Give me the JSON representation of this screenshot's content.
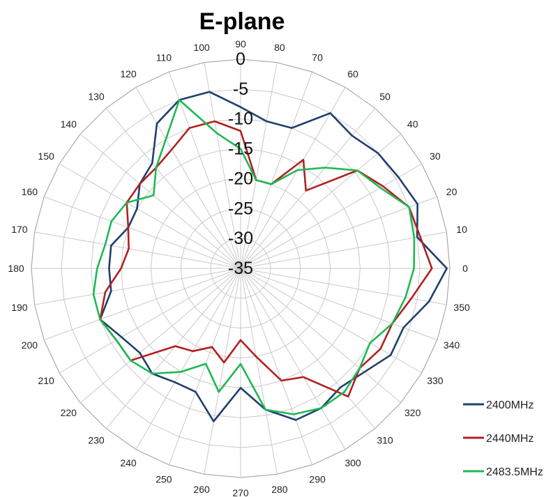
{
  "chart_data": {
    "type": "line",
    "subtype": "polar-radar",
    "title": "E-plane",
    "angle_labels": [
      "0",
      "10",
      "20",
      "30",
      "40",
      "50",
      "60",
      "70",
      "80",
      "90",
      "100",
      "110",
      "120",
      "130",
      "140",
      "150",
      "160",
      "170",
      "180",
      "190",
      "200",
      "210",
      "220",
      "230",
      "240",
      "250",
      "260",
      "270",
      "280",
      "290",
      "300",
      "310",
      "320",
      "330",
      "340",
      "350"
    ],
    "radial_labels": [
      "0",
      "-5",
      "-10",
      "-15",
      "-20",
      "-25",
      "-30",
      "-35"
    ],
    "rlim": [
      -35,
      0
    ],
    "grid": true,
    "legend_position": "bottom-right",
    "angles": [
      0,
      10,
      20,
      30,
      40,
      50,
      60,
      70,
      80,
      90,
      100,
      110,
      120,
      130,
      140,
      150,
      160,
      170,
      180,
      190,
      200,
      210,
      220,
      230,
      240,
      250,
      260,
      270,
      280,
      290,
      300,
      310,
      320,
      330,
      340,
      350
    ],
    "series": [
      {
        "name": "2400MHz",
        "color": "#1f3f6e",
        "values": [
          -0.5,
          -5,
          -3.5,
          -4.5,
          -5,
          -6,
          -5,
          -10,
          -10,
          -8,
          -5,
          -5,
          -7,
          -12,
          -13,
          -15,
          -15,
          -13,
          -13,
          -13,
          -10,
          -12,
          -13,
          -12,
          -13,
          -13,
          -9,
          -15,
          -11,
          -8,
          -8,
          -9,
          -8,
          -6,
          -6,
          -3
        ]
      },
      {
        "name": "2440MHz",
        "color": "#b22020",
        "values": [
          -3,
          -4.5,
          -5,
          -7.5,
          -9.5,
          -18,
          -14,
          -20,
          -20,
          -12,
          -10,
          -10,
          -12,
          -13,
          -13,
          -13,
          -15,
          -16,
          -15,
          -12,
          -10,
          -11,
          -11,
          -18,
          -19,
          -21,
          -19,
          -23,
          -20,
          -15,
          -14,
          -7,
          -9,
          -8,
          -8,
          -6
        ]
      },
      {
        "name": "2483.5MHz",
        "color": "#1db954",
        "values": [
          -6,
          -5.5,
          -5,
          -8,
          -9.5,
          -13,
          -16,
          -20,
          -20,
          -15,
          -12,
          -5,
          -10,
          -13,
          -16,
          -13,
          -12,
          -12,
          -11,
          -10,
          -10,
          -11,
          -11,
          -12,
          -15,
          -18,
          -14,
          -19,
          -11,
          -9,
          -8,
          -8,
          -9,
          -10,
          -8,
          -7
        ]
      }
    ]
  }
}
